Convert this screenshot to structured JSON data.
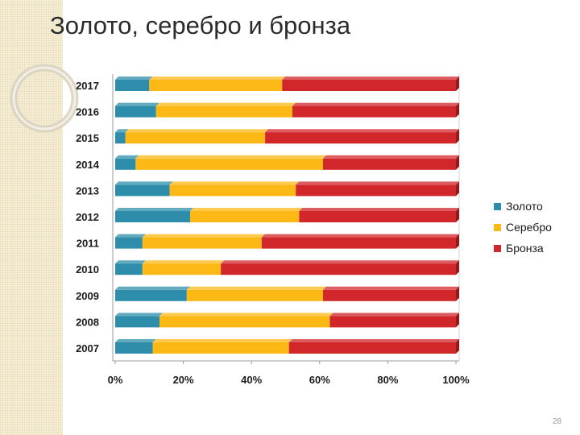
{
  "slide": {
    "title": "Золото, серебро и бронза",
    "page_number": "28"
  },
  "chart_data": {
    "type": "bar",
    "orientation": "horizontal",
    "stacked": "percent",
    "categories": [
      "2007",
      "2008",
      "2009",
      "2010",
      "2011",
      "2012",
      "2013",
      "2014",
      "2015",
      "2016",
      "2017"
    ],
    "series": [
      {
        "name": "Золото",
        "color": "#2e8dab",
        "values": [
          11,
          13,
          21,
          8,
          8,
          22,
          16,
          6,
          3,
          12,
          10
        ]
      },
      {
        "name": "Серебро",
        "color": "#fcb814",
        "values": [
          40,
          50,
          40,
          23,
          35,
          32,
          37,
          55,
          41,
          40,
          39
        ]
      },
      {
        "name": "Бронза",
        "color": "#d1262a",
        "values": [
          49,
          37,
          39,
          69,
          57,
          46,
          47,
          39,
          56,
          48,
          51
        ]
      }
    ],
    "xlim": [
      0,
      100
    ],
    "x_ticks": [
      "0%",
      "20%",
      "40%",
      "60%",
      "80%",
      "100%"
    ],
    "legend_position": "right",
    "grid": false,
    "colors": {
      "axis": "#9a9a9a",
      "text": "#1a1a1a"
    }
  }
}
